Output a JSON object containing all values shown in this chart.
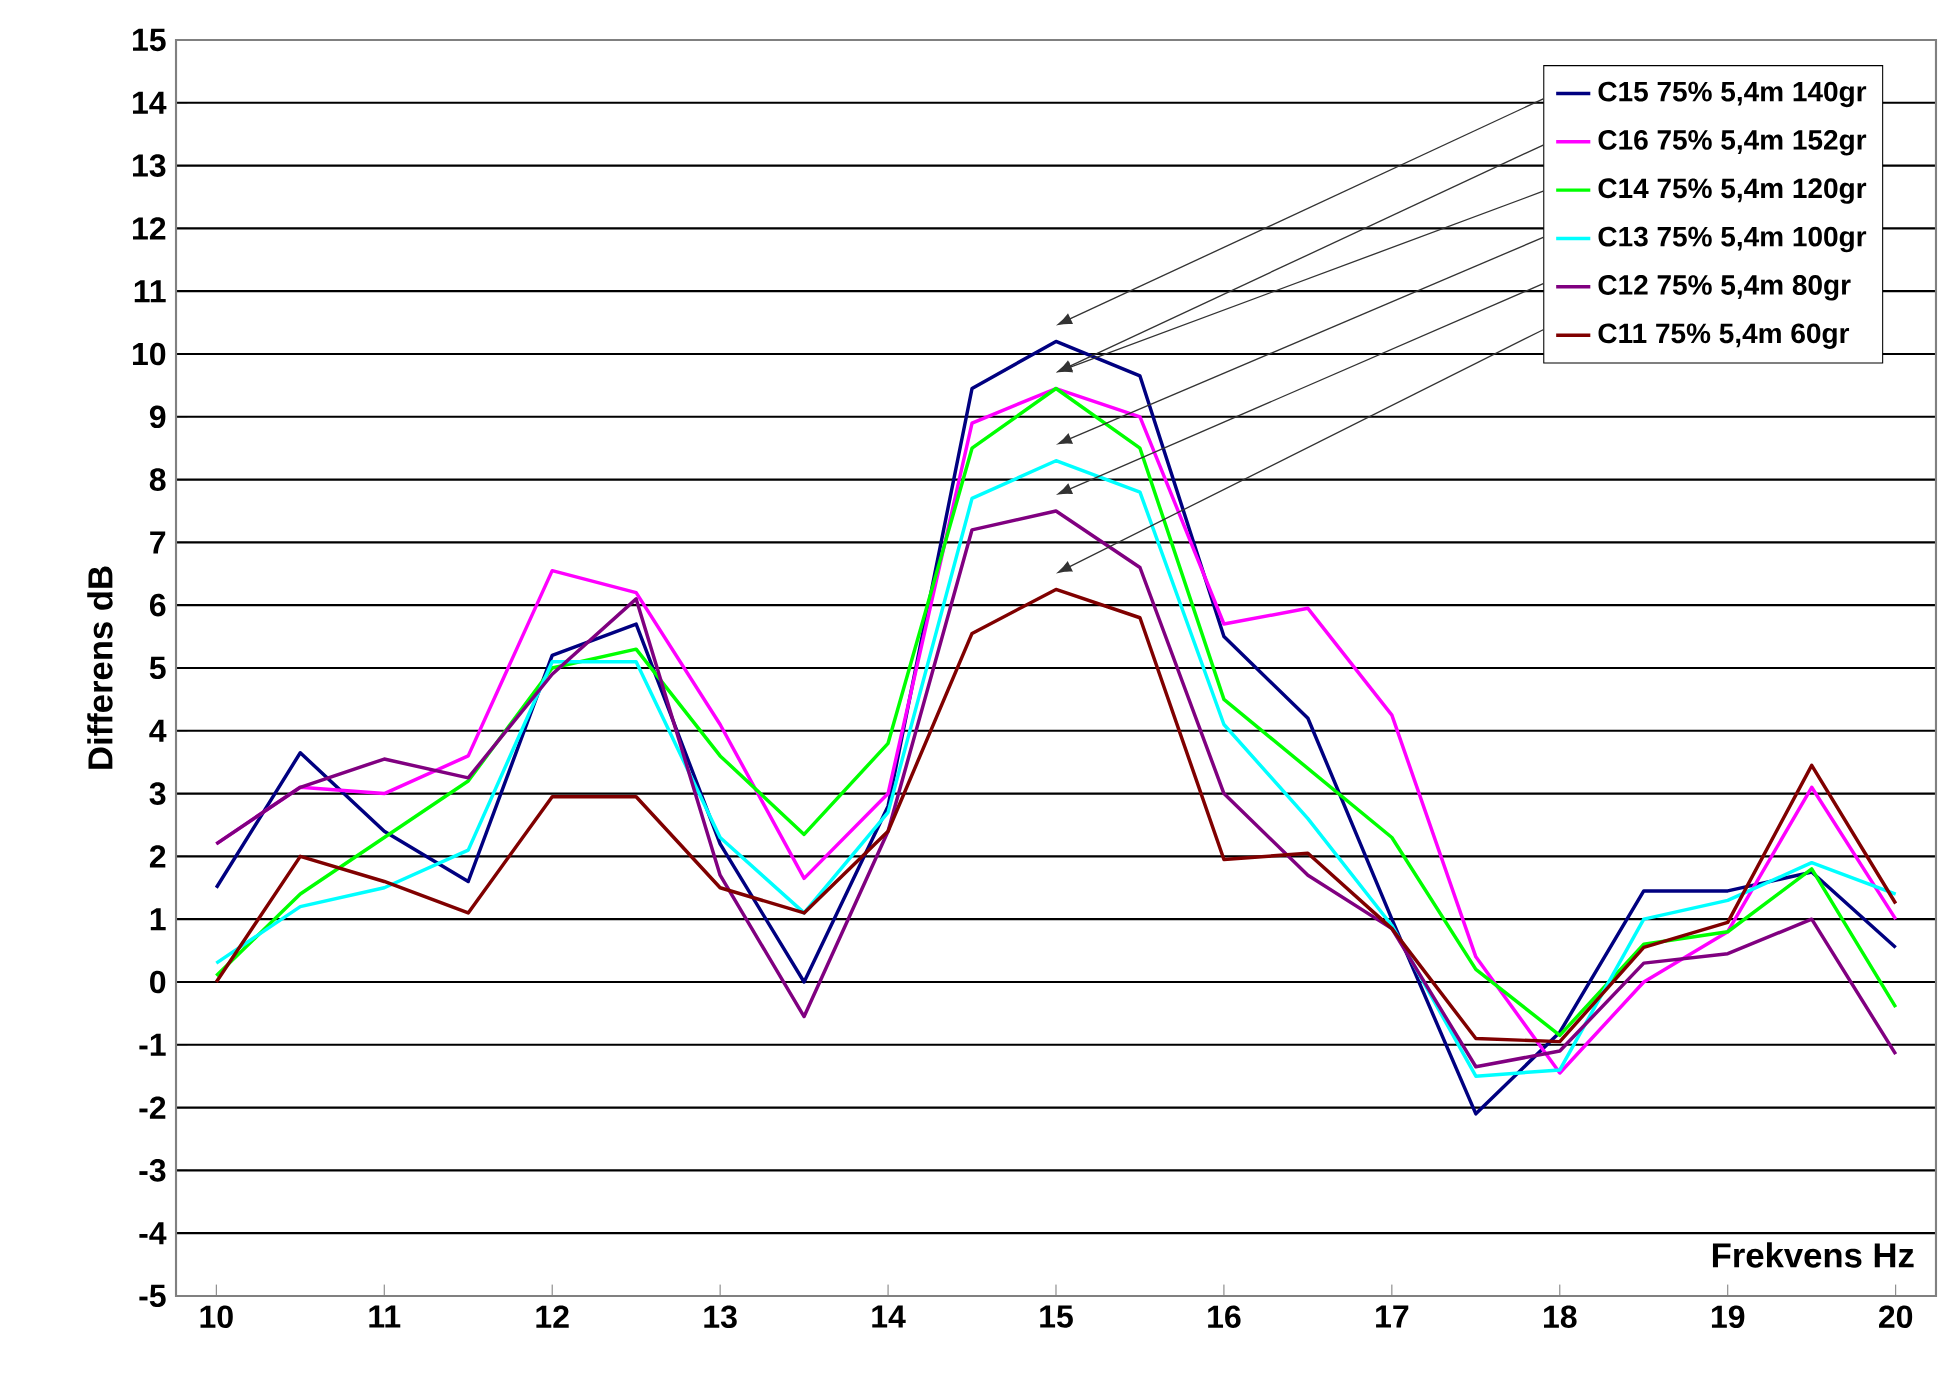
{
  "chart_data": {
    "type": "line",
    "xlabel": "Frekvens Hz",
    "ylabel": "Differens dB",
    "x": [
      10,
      10.5,
      11,
      11.5,
      12,
      12.5,
      13,
      13.5,
      14,
      14.5,
      15,
      15.5,
      16,
      16.5,
      17,
      17.5,
      18,
      18.5,
      19,
      19.5,
      20
    ],
    "xlim": [
      9.76,
      20.24
    ],
    "xticks": [
      10,
      11,
      12,
      13,
      14,
      15,
      16,
      17,
      18,
      19,
      20
    ],
    "ylim": [
      -5,
      15
    ],
    "yticks": [
      -5,
      -4,
      -3,
      -2,
      -1,
      0,
      1,
      2,
      3,
      4,
      5,
      6,
      7,
      8,
      9,
      10,
      11,
      12,
      13,
      14,
      15
    ],
    "grid": "y",
    "legend": "top right",
    "marker": "none",
    "line_style": "solid",
    "series": [
      {
        "name": "C15 75% 5,4m 140gr",
        "color": "#000080",
        "values": [
          1.5,
          3.65,
          2.4,
          1.6,
          5.2,
          5.7,
          2.2,
          0.0,
          2.8,
          9.45,
          10.2,
          9.65,
          5.5,
          4.2,
          1.0,
          -2.1,
          -0.8,
          1.45,
          1.45,
          1.75,
          0.55
        ]
      },
      {
        "name": "C16 75% 5,4m 152gr",
        "color": "#ff00ff",
        "values": [
          2.2,
          3.1,
          3.0,
          3.6,
          6.55,
          6.2,
          4.1,
          1.65,
          3.0,
          8.9,
          9.45,
          9.0,
          5.7,
          5.95,
          4.25,
          0.4,
          -1.45,
          0.0,
          0.8,
          3.1,
          1.0
        ]
      },
      {
        "name": "C14 75% 5,4m 120gr",
        "color": "#00ff00",
        "values": [
          0.1,
          1.4,
          2.3,
          3.2,
          5.0,
          5.3,
          3.6,
          2.35,
          3.8,
          8.5,
          9.45,
          8.5,
          4.5,
          3.4,
          2.3,
          0.2,
          -0.85,
          0.6,
          0.8,
          1.8,
          -0.4
        ]
      },
      {
        "name": "C13 75% 5,4m 100gr",
        "color": "#00ffff",
        "values": [
          0.3,
          1.2,
          1.5,
          2.1,
          5.1,
          5.1,
          2.3,
          1.1,
          2.7,
          7.7,
          8.3,
          7.8,
          4.1,
          2.6,
          0.9,
          -1.5,
          -1.4,
          1.0,
          1.3,
          1.9,
          1.4
        ]
      },
      {
        "name": "C12 75% 5,4m 80gr",
        "color": "#800080",
        "values": [
          2.2,
          3.1,
          3.55,
          3.25,
          4.9,
          6.1,
          1.7,
          -0.55,
          2.4,
          7.2,
          7.5,
          6.6,
          3.0,
          1.7,
          0.85,
          -1.35,
          -1.1,
          0.3,
          0.45,
          1.0,
          -1.15
        ]
      },
      {
        "name": "C11 75% 5,4m 60gr",
        "color": "#800000",
        "values": [
          0.0,
          2.0,
          1.6,
          1.1,
          2.95,
          2.95,
          1.5,
          1.1,
          2.4,
          5.55,
          6.25,
          5.8,
          1.95,
          2.05,
          0.85,
          -0.9,
          -0.95,
          0.55,
          0.95,
          3.45,
          1.25
        ]
      }
    ]
  }
}
